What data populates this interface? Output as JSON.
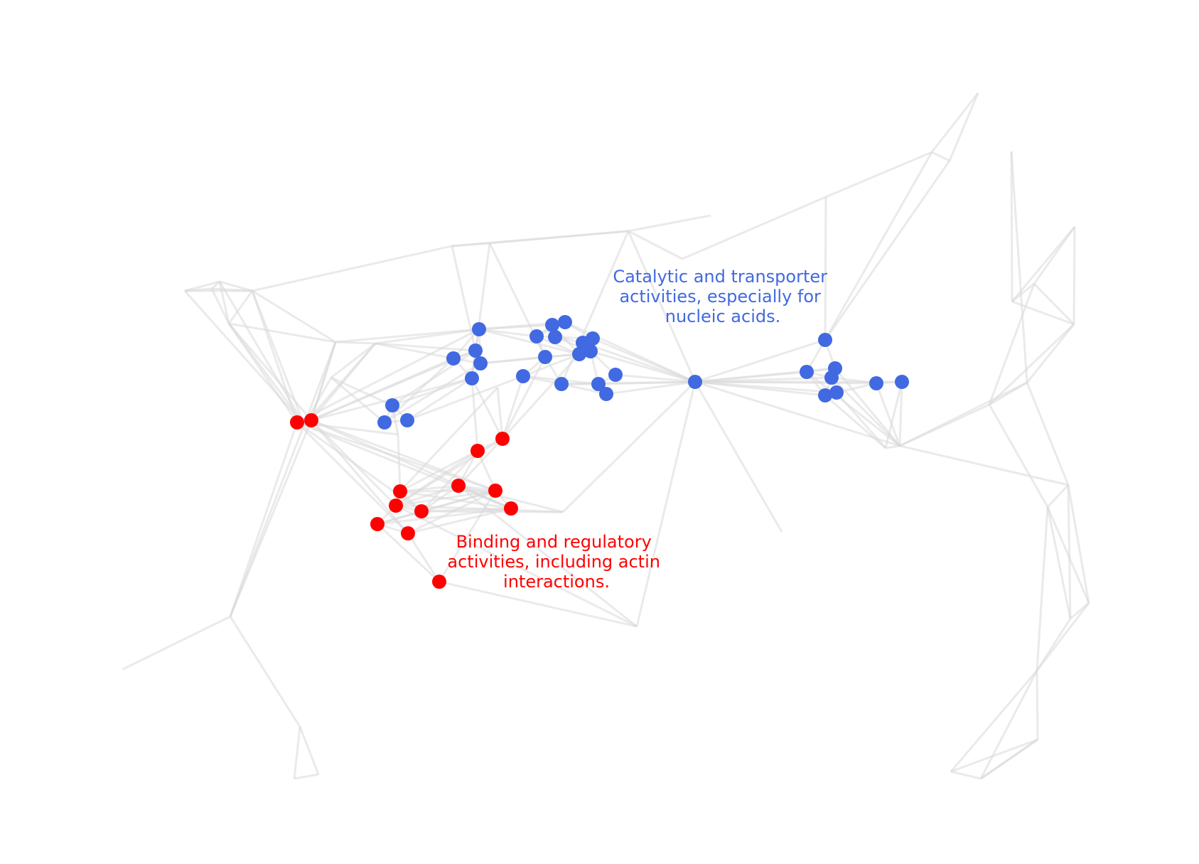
{
  "colors": {
    "background": "#ffffff",
    "edge": "#d9d9d9",
    "cluster_catalytic": "#4169e1",
    "cluster_binding": "#ff0000"
  },
  "clusters": [
    {
      "id": "catalytic",
      "color": "#4169e1",
      "label_lines": [
        "Catalytic and transporter",
        "activities, especially for",
        "nucleic acids."
      ]
    },
    {
      "id": "binding",
      "color": "#ff0000",
      "label_lines": [
        "Binding and regulatory",
        "activities, including actin",
        "interactions."
      ]
    }
  ]
}
